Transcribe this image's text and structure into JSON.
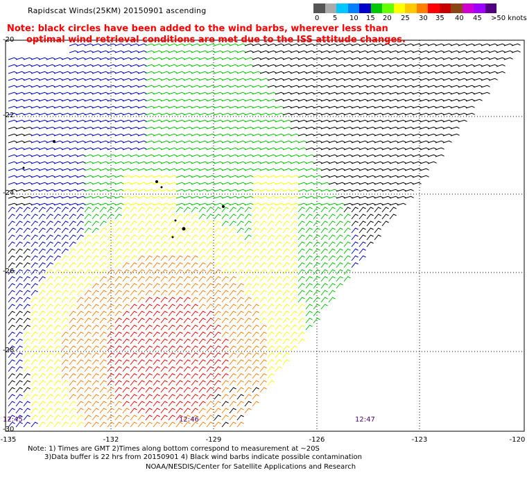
{
  "title": "Rapidscat Winds(25KM) 20150901 ascending",
  "note": {
    "line1": "Note: black circles have been added to the wind barbs, wherever less than",
    "line2": "optimal wind retrieval conditions are met due to the ISS attitude changes."
  },
  "color_scale": {
    "labels": [
      "0",
      "5",
      "10",
      "15",
      "20",
      "25",
      "30",
      "35",
      "40",
      "45",
      ">50 knots"
    ],
    "colors": [
      "#555555",
      "#aaaaaa",
      "#00c8ff",
      "#0080ff",
      "#0000c8",
      "#00c800",
      "#64ff00",
      "#ffff00",
      "#ffc800",
      "#ff8000",
      "#ff0000",
      "#c80000",
      "#8b4513",
      "#d000d0",
      "#a000ff",
      "#500080"
    ]
  },
  "lat_labels": [
    "-20",
    "-22",
    "-24",
    "-26",
    "-28",
    "-30"
  ],
  "lon_labels": [
    "-135",
    "-132",
    "-129",
    "-126",
    "-123",
    "-120"
  ],
  "times": [
    "12:45",
    "12:46",
    "12:47"
  ],
  "footer": {
    "line1": "Note: 1) Times are GMT 2)Times along bottom correspond to measurement at ~20S",
    "line2": "3)Data buffer is 22 hrs from 20150901 4) Black wind barbs indicate possible contamination",
    "credit": "NOAA/NESDIS/Center for Satellite Applications and Research"
  }
}
